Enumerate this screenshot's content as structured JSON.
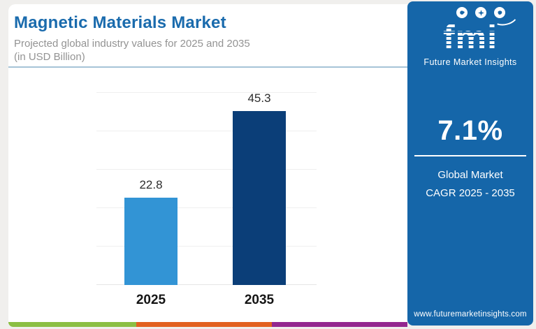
{
  "header": {
    "title": "Magnetic Materials Market",
    "subtitle_line1": "Projected global industry values for 2025 and 2035",
    "subtitle_line2": "(in USD Billion)"
  },
  "chart_data": {
    "type": "bar",
    "categories": [
      "2025",
      "2035"
    ],
    "values": [
      22.8,
      45.3
    ],
    "title": "Magnetic Materials Market",
    "xlabel": "",
    "ylabel": "",
    "ylim": [
      0,
      50
    ],
    "gridline_step": 10,
    "grid": true,
    "legend": false,
    "bar_colors": [
      "#3294d5",
      "#0b3e78"
    ]
  },
  "sidebar": {
    "bg_color": "#1566a9",
    "logo_text": "fmi",
    "logo_tagline": "Future Market Insights",
    "cagr_value": "7.1%",
    "cagr_label_line1": "Global Market",
    "cagr_label_line2": "CAGR 2025 - 2035",
    "website": "www.futuremarketinsights.com"
  },
  "footer_strip": {
    "colors": [
      "#8bbf44",
      "#e2611f",
      "#93278f"
    ]
  },
  "accent_colors": {
    "title_blue": "#1a6bad",
    "divider_blue": "#a6c4d7"
  }
}
